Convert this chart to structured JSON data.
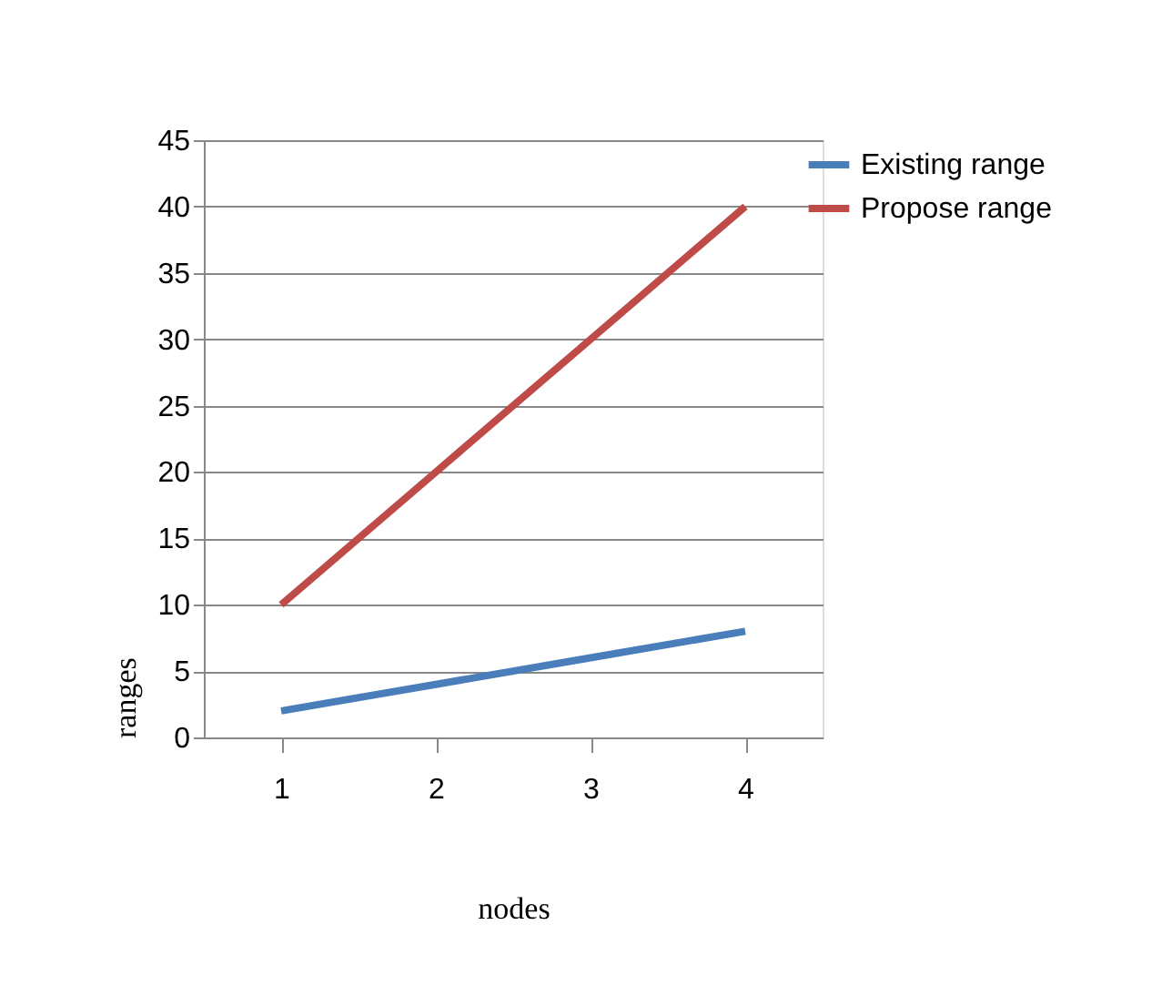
{
  "chart_data": {
    "type": "line",
    "xlabel": "nodes",
    "ylabel": "ranges",
    "categories": [
      "1",
      "2",
      "3",
      "4"
    ],
    "series": [
      {
        "name": "Existing range",
        "color": "#4a7ebb",
        "values": [
          2,
          4,
          6,
          8
        ]
      },
      {
        "name": "Propose range",
        "color": "#be4b48",
        "values": [
          10,
          20,
          30,
          40
        ]
      }
    ],
    "ylim": [
      0,
      45
    ],
    "yticks": [
      0,
      5,
      10,
      15,
      20,
      25,
      30,
      35,
      40,
      45
    ],
    "grid": "y",
    "legend": "right",
    "marker": "none",
    "line_style": "solid"
  }
}
